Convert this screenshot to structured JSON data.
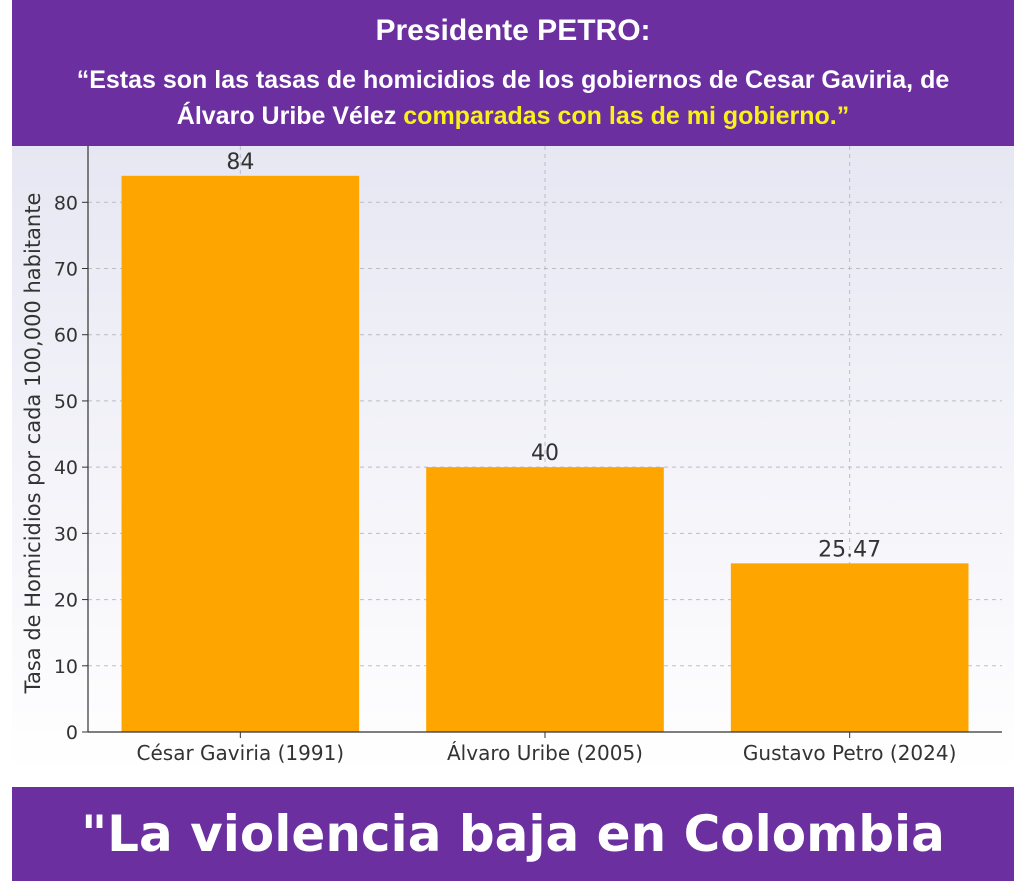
{
  "header": {
    "title": "Presidente PETRO:",
    "quote_part1": "“Estas son las tasas de homicidios de los gobiernos de Cesar Gaviria, de Álvaro Uribe Vélez ",
    "quote_highlight": "comparadas con las de mi gobierno.”"
  },
  "footer": {
    "text": "\"La violencia baja en Colombia"
  },
  "colors": {
    "banner": "#6b2fa0",
    "highlight": "#f7f21a",
    "bar": "#ffa500"
  },
  "chart_data": {
    "type": "bar",
    "title": "",
    "xlabel": "",
    "ylabel": "Tasa de Homicidios por cada 100,000 habitante",
    "categories": [
      "César Gaviria (1991)",
      "Álvaro Uribe (2005)",
      "Gustavo Petro (2024)"
    ],
    "values": [
      84,
      40,
      25.47
    ],
    "data_labels": [
      "84",
      "40",
      "25.47"
    ],
    "ylim": [
      0,
      88.5
    ],
    "yticks": [
      0,
      10,
      20,
      30,
      40,
      50,
      60,
      70,
      80
    ],
    "ytick_labels": [
      "0",
      "10",
      "20",
      "30",
      "40",
      "50",
      "60",
      "70",
      "80"
    ],
    "grid": true,
    "legend": "none"
  }
}
